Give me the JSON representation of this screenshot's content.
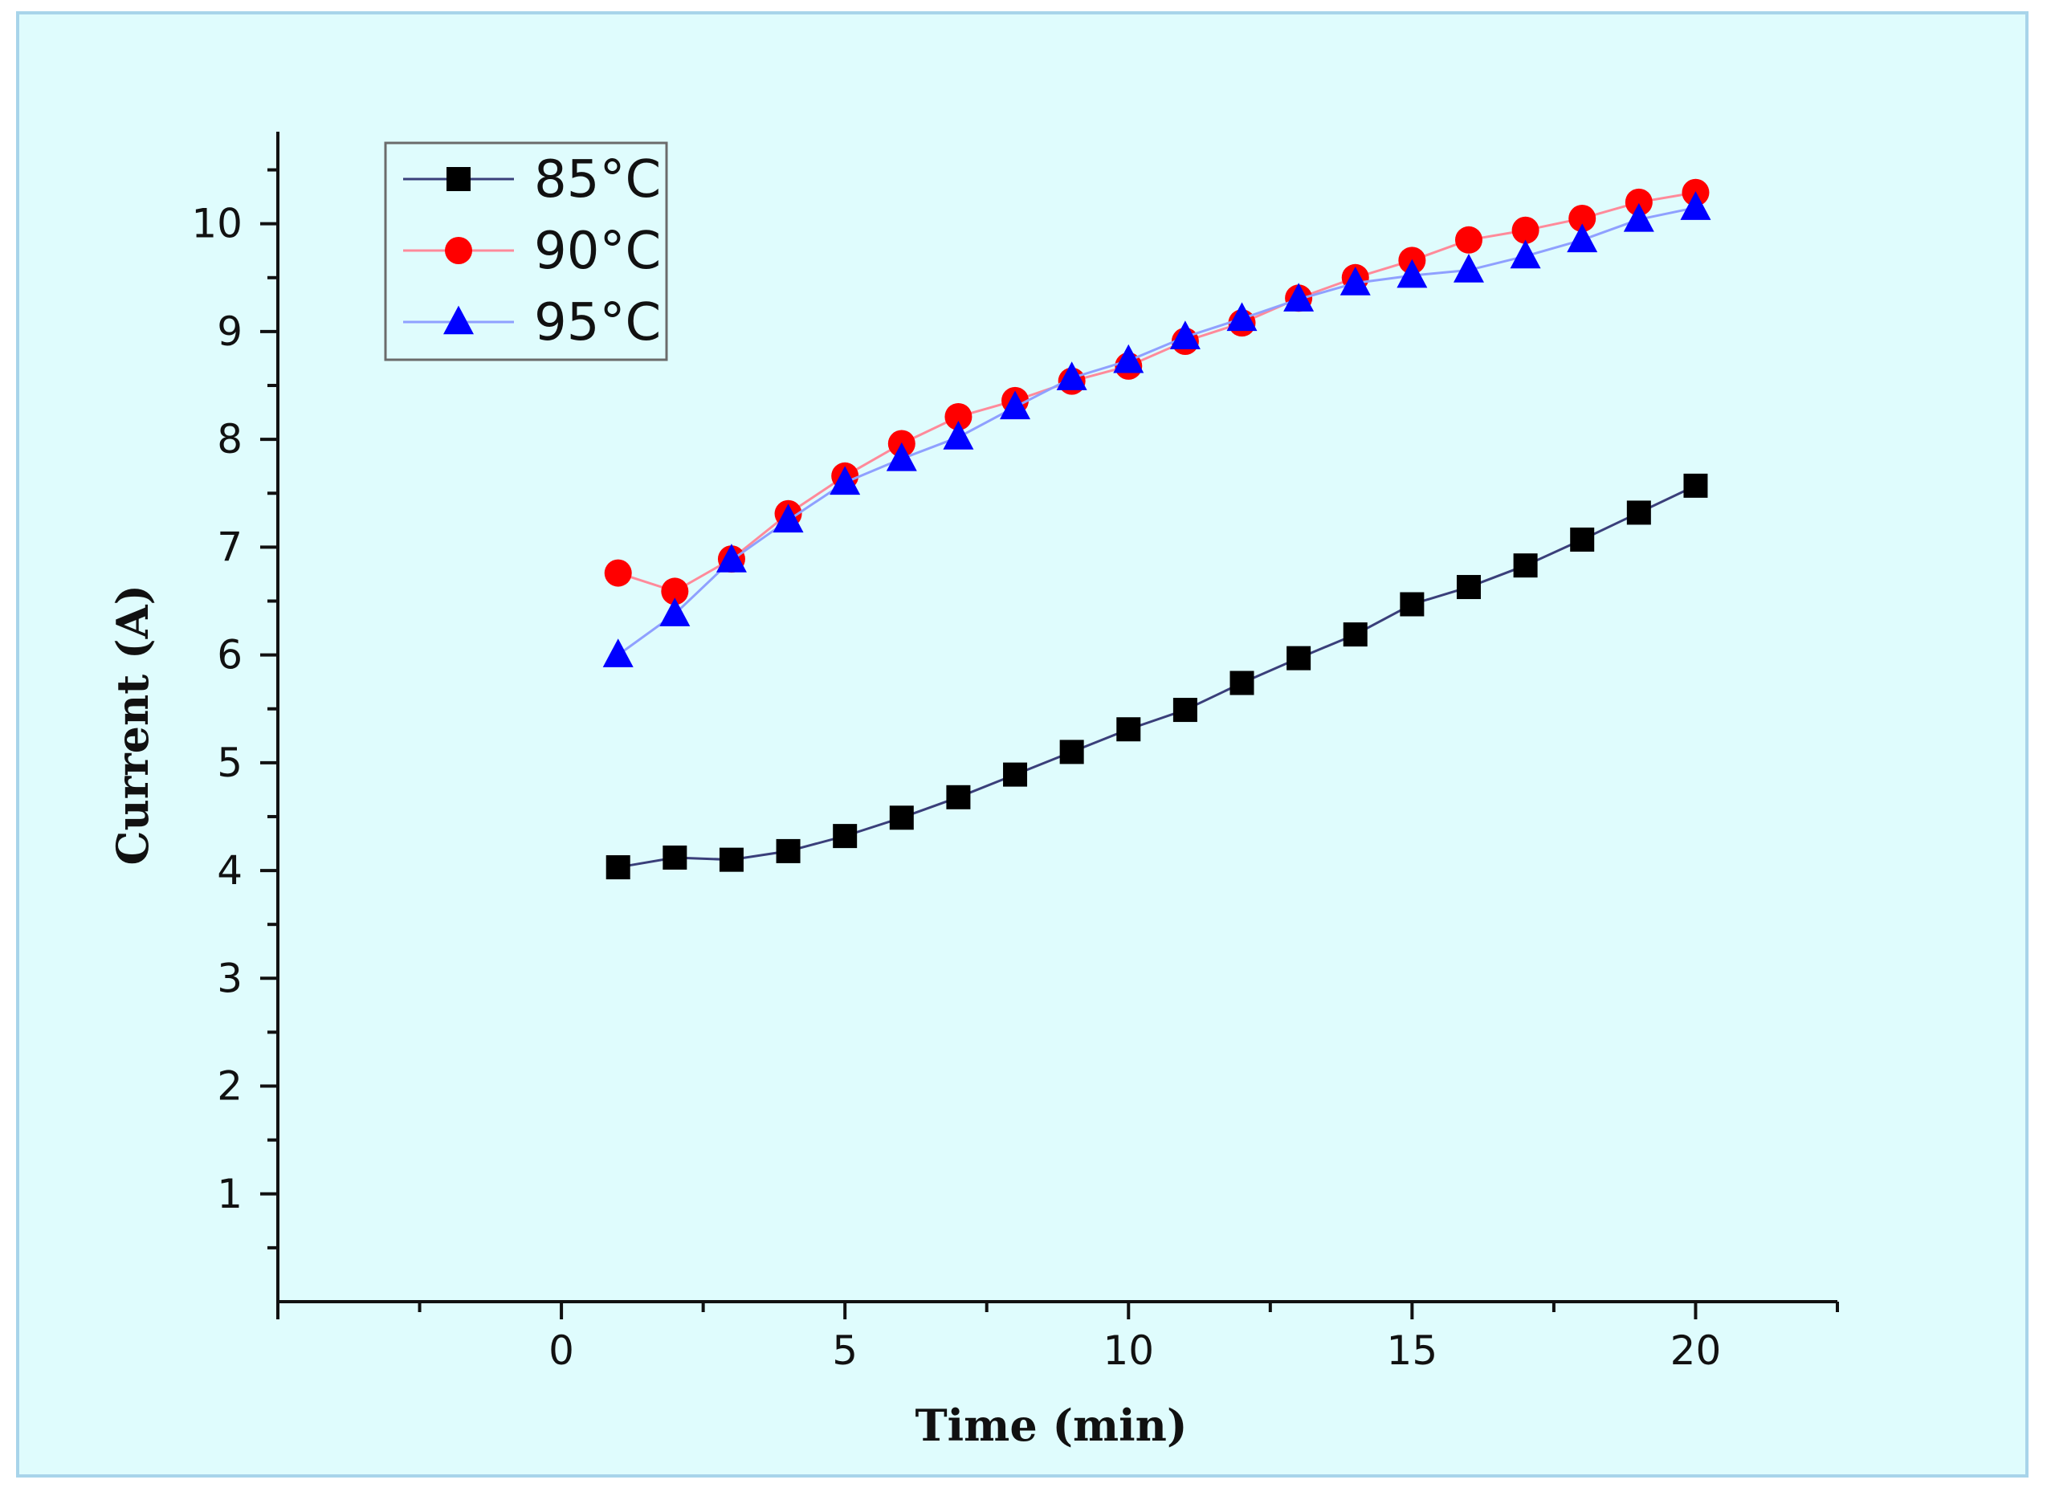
{
  "chart_data": {
    "type": "line",
    "title": "",
    "xlabel": "Time (min)",
    "ylabel": "Current (A)",
    "xlim": [
      -5,
      22.5
    ],
    "ylim": [
      0,
      10.75
    ],
    "x_ticks": [
      0,
      5,
      10,
      15,
      20
    ],
    "y_ticks": [
      1,
      2,
      3,
      4,
      5,
      6,
      7,
      8,
      9,
      10
    ],
    "grid": false,
    "legend_position": "top-left",
    "x": [
      1,
      2,
      3,
      4,
      5,
      6,
      7,
      8,
      9,
      10,
      11,
      12,
      13,
      14,
      15,
      16,
      17,
      18,
      19,
      20
    ],
    "series": [
      {
        "name": "85°C",
        "marker": "square",
        "color": "#000000",
        "line_color": "#3a3f7a",
        "values": [
          4.03,
          4.12,
          4.1,
          4.18,
          4.32,
          4.49,
          4.68,
          4.89,
          5.1,
          5.31,
          5.49,
          5.74,
          5.97,
          6.19,
          6.47,
          6.63,
          6.83,
          7.07,
          7.32,
          7.57
        ]
      },
      {
        "name": "90°C",
        "marker": "circle",
        "color": "#ff0000",
        "line_color": "#ff8a9a",
        "values": [
          6.76,
          6.59,
          6.89,
          7.31,
          7.66,
          7.96,
          8.21,
          8.36,
          8.54,
          8.68,
          8.91,
          9.08,
          9.31,
          9.5,
          9.66,
          9.85,
          9.94,
          10.05,
          10.2,
          10.29
        ]
      },
      {
        "name": "95°C",
        "marker": "triangle",
        "color": "#0000ff",
        "line_color": "#8fa0ff",
        "values": [
          6.0,
          6.38,
          6.88,
          7.25,
          7.6,
          7.82,
          8.02,
          8.3,
          8.57,
          8.73,
          8.95,
          9.12,
          9.3,
          9.45,
          9.52,
          9.57,
          9.7,
          9.85,
          10.04,
          10.15
        ]
      }
    ]
  }
}
